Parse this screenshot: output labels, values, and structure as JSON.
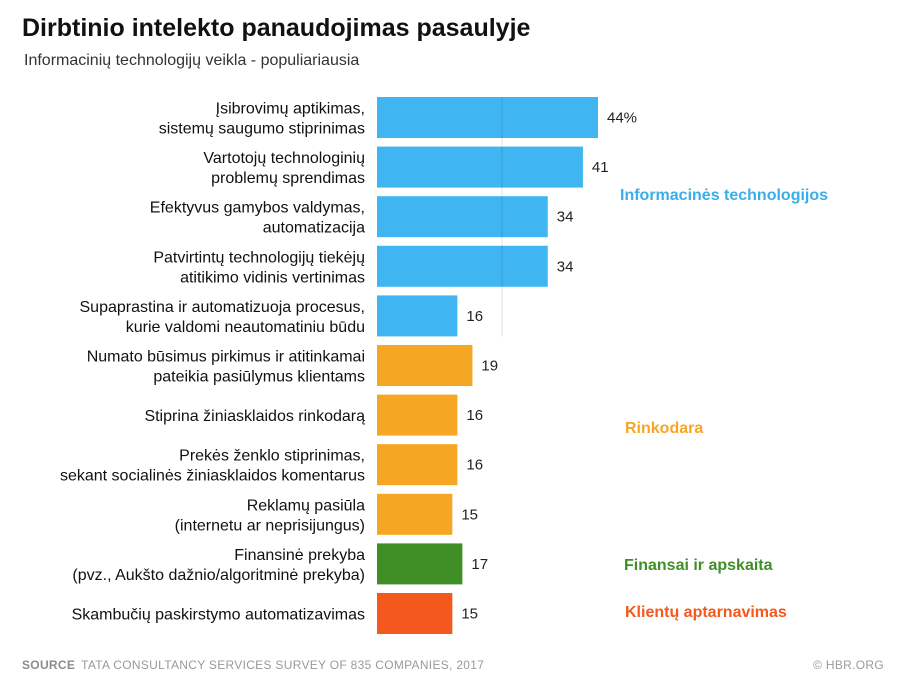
{
  "chart_data": {
    "type": "bar",
    "orientation": "horizontal",
    "title": "Dirbtinio intelekto panaudojimas pasaulyje",
    "subtitle": "Informacinių technologijų veikla - populiariausia",
    "categories": [
      [
        "Įsibrovimų aptikimas,",
        "sistemų saugumo stiprinimas"
      ],
      [
        "Vartotojų technologinių",
        "problemų sprendimas"
      ],
      [
        "Efektyvus gamybos valdymas,",
        "automatizacija"
      ],
      [
        "Patvirtintų technologijų tiekėjų",
        "atitikimo vidinis vertinimas"
      ],
      [
        "Supaprastina ir automatizuoja procesus,",
        "kurie valdomi neautomatiniu būdu"
      ],
      [
        "Numato būsimus pirkimus ir atitinkamai",
        "pateikia pasiūlymus klientams"
      ],
      [
        "Stiprina žiniasklaidos rinkodarą"
      ],
      [
        "Prekės ženklo stiprinimas,",
        "sekant socialinės žiniasklaidos komentarus"
      ],
      [
        "Reklamų pasiūla",
        "(internetu ar  neprisijungus)"
      ],
      [
        "Finansinė prekyba",
        "(pvz., Aukšto dažnio/algoritminė prekyba)"
      ],
      [
        "Skambučių paskirstymo automatizavimas"
      ]
    ],
    "values": [
      44,
      41,
      34,
      34,
      16,
      19,
      16,
      16,
      15,
      17,
      15
    ],
    "value_labels": [
      "44%",
      "41",
      "34",
      "34",
      "16",
      "19",
      "16",
      "16",
      "15",
      "17",
      "15"
    ],
    "groups": [
      {
        "name": "Informacinės technologijos",
        "color": "#3fb6f2",
        "label_color": "#3aaee8",
        "rows": [
          0,
          1,
          2,
          3,
          4
        ]
      },
      {
        "name": "Rinkodara",
        "color": "#f5a623",
        "label_color": "#f5a623",
        "rows": [
          5,
          6,
          7,
          8
        ]
      },
      {
        "name": "Finansai ir apskaita",
        "color": "#3f8f26",
        "label_color": "#3f8f26",
        "rows": [
          9
        ]
      },
      {
        "name": "Klientų aptarnavimas",
        "color": "#f4581d",
        "label_color": "#f4581d",
        "rows": [
          10
        ]
      }
    ],
    "xlim": [
      0,
      44
    ]
  },
  "footer": {
    "source_label": "SOURCE",
    "source_text": "TATA CONSULTANCY SERVICES SURVEY OF 835 COMPANIES, 2017",
    "credit": "© HBR.ORG"
  }
}
